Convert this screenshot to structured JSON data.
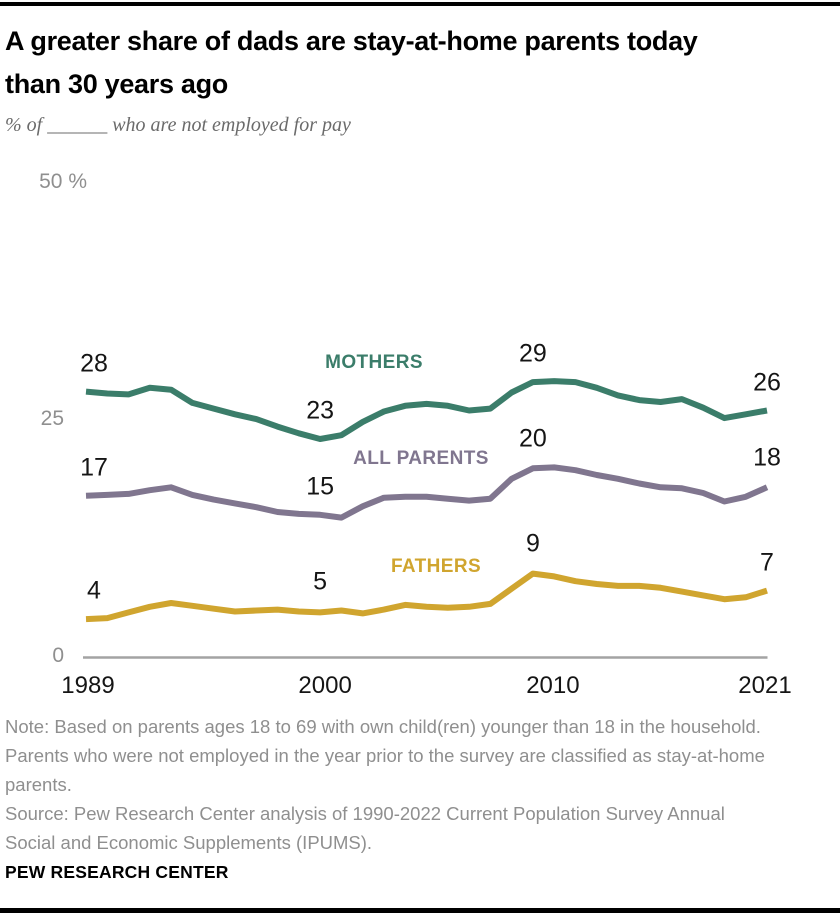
{
  "report": {
    "title": "A greater share of dads are stay-at-home parents today\nthan 30 years ago",
    "subtitle": "% of ______ who are not employed for pay",
    "note": "Note: Based on parents ages 18 to 69 with own child(ren) younger than 18 in the household.\nParents who were not employed in the year prior to the survey are classified as stay-at-home\nparents.",
    "source": "Source: Pew Research Center analysis of 1990-2022 Current Population Survey Annual\nSocial and Economic Supplements (IPUMS).",
    "footer": "PEW RESEARCH CENTER"
  },
  "chart_data": {
    "type": "line",
    "title": "A greater share of dads are stay-at-home parents today than 30 years ago",
    "subtitle": "% of ______ who are not employed for pay",
    "xlabel": "",
    "ylabel": "%",
    "ylim": [
      0,
      50
    ],
    "grid": false,
    "legend_position": "inline-labels",
    "axis_color": "#a3a3a3",
    "x": [
      1989,
      1990,
      1991,
      1992,
      1993,
      1994,
      1995,
      1996,
      1997,
      1998,
      1999,
      2000,
      2001,
      2002,
      2003,
      2004,
      2005,
      2006,
      2007,
      2008,
      2009,
      2010,
      2011,
      2012,
      2013,
      2014,
      2015,
      2016,
      2017,
      2018,
      2019,
      2020,
      2021
    ],
    "x_ticks": [
      1989,
      2000,
      2010,
      2021
    ],
    "y_ticks": [
      {
        "value": 50,
        "label": "50 %"
      },
      {
        "value": 25,
        "label": "25"
      },
      {
        "value": 0,
        "label": "0"
      }
    ],
    "series": [
      {
        "id": "mothers",
        "name": "MOTHERS",
        "color": "#3b7d6a",
        "values": [
          28,
          27.8,
          27.7,
          28.4,
          28.2,
          26.8,
          26.2,
          25.6,
          25.1,
          24.3,
          23.6,
          23.0,
          23.4,
          24.8,
          25.9,
          26.5,
          26.7,
          26.5,
          26.0,
          26.2,
          27.9,
          29.0,
          29.1,
          29.0,
          28.4,
          27.6,
          27.1,
          26.9,
          27.2,
          26.3,
          25.2,
          25.6,
          26.0
        ],
        "callouts": [
          {
            "year": 1989,
            "value": 28,
            "label": "28"
          },
          {
            "year": 2000,
            "value": 23,
            "label": "23"
          },
          {
            "year": 2010,
            "value": 29,
            "label": "29"
          },
          {
            "year": 2021,
            "value": 26,
            "label": "26"
          }
        ]
      },
      {
        "id": "all-parents",
        "name": "ALL PARENTS",
        "color": "#80768f",
        "values": [
          17,
          17.1,
          17.2,
          17.6,
          17.9,
          17.1,
          16.6,
          16.2,
          15.8,
          15.3,
          15.1,
          15.0,
          14.7,
          15.9,
          16.8,
          16.9,
          16.9,
          16.7,
          16.5,
          16.7,
          18.8,
          19.9,
          20.0,
          19.7,
          19.2,
          18.8,
          18.3,
          17.9,
          17.8,
          17.3,
          16.4,
          16.9,
          17.9
        ],
        "callouts": [
          {
            "year": 1989,
            "value": 17,
            "label": "17"
          },
          {
            "year": 2000,
            "value": 15,
            "label": "15"
          },
          {
            "year": 2010,
            "value": 20,
            "label": "20"
          },
          {
            "year": 2021,
            "value": 18,
            "label": "18"
          }
        ]
      },
      {
        "id": "fathers",
        "name": "FATHERS",
        "color": "#d0a52f",
        "values": [
          4,
          4.1,
          4.7,
          5.3,
          5.7,
          5.4,
          5.1,
          4.8,
          4.9,
          5.0,
          4.8,
          4.7,
          4.9,
          4.6,
          5.0,
          5.5,
          5.3,
          5.2,
          5.3,
          5.6,
          7.2,
          8.8,
          8.5,
          8.0,
          7.7,
          7.5,
          7.5,
          7.3,
          6.9,
          6.5,
          6.1,
          6.3,
          7.0
        ],
        "callouts": [
          {
            "year": 1989,
            "value": 4,
            "label": "4"
          },
          {
            "year": 2000,
            "value": 5,
            "label": "5"
          },
          {
            "year": 2010,
            "value": 9,
            "label": "9"
          },
          {
            "year": 2021,
            "value": 7,
            "label": "7"
          }
        ]
      }
    ]
  }
}
